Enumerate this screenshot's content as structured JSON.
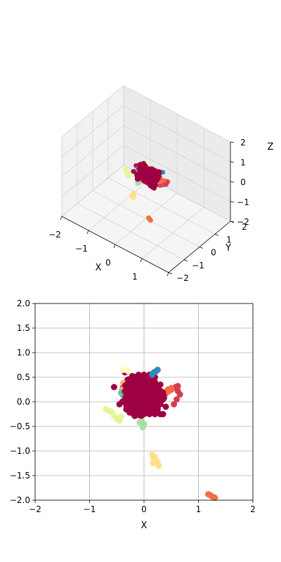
{
  "colors": {
    "main": "#9e0142",
    "red": "#d53e4f",
    "orange_red": "#f46d43",
    "orange": "#fdae61",
    "yellow": "#fee08b",
    "light_yellow": "#ffffbf",
    "light_green": "#e6f598",
    "green": "#abdda4",
    "teal": "#66c2a5",
    "blue": "#3288bd"
  },
  "chart_data": [
    {
      "type": "scatter3d",
      "xlabel": "X",
      "ylabel": "Y",
      "zlabel": "Z",
      "xlim": [
        -2,
        2
      ],
      "ylim": [
        -2,
        2
      ],
      "zlim": [
        -2,
        2
      ],
      "xticks": [
        "−2",
        "−1",
        "0",
        "1",
        "2"
      ],
      "yticks": [
        "−2",
        "−1",
        "0",
        "1",
        "2"
      ],
      "zticks": [
        "−2",
        "−1",
        "0",
        "1",
        "2"
      ],
      "grid": true
    },
    {
      "type": "scatter",
      "xlabel": "X",
      "ylabel": "",
      "xlim": [
        -2,
        2
      ],
      "ylim": [
        -2,
        2
      ],
      "xticks": [
        "−2",
        "−1",
        "0",
        "1",
        "2"
      ],
      "yticks": [
        "−2.0",
        "−1.5",
        "−1.0",
        "−0.5",
        "0.0",
        "0.5",
        "1.0",
        "1.5",
        "2.0"
      ],
      "grid": true,
      "series": [
        {
          "color": "main",
          "x": [
            -0.3,
            -0.2,
            -0.1,
            0.0,
            0.1,
            0.2,
            0.3,
            -0.25,
            -0.15,
            -0.05,
            0.05,
            0.15,
            0.25,
            -0.3,
            -0.2,
            -0.1,
            0.0,
            0.1,
            0.2,
            0.3,
            -0.25,
            -0.15,
            -0.05,
            0.05,
            0.15,
            0.25,
            -0.2,
            -0.1,
            0.0,
            0.1,
            0.2,
            0.3,
            -0.15,
            -0.05,
            0.05,
            0.15,
            0.25,
            -0.1,
            0.0,
            0.1,
            0.2,
            0.3,
            -0.35,
            -0.4,
            -0.45,
            -0.55,
            -0.35,
            0.35,
            0.4,
            0.35,
            -0.1,
            0.0,
            0.1,
            0.2,
            -0.3,
            -0.38
          ],
          "y": [
            0.45,
            0.5,
            0.5,
            0.45,
            0.45,
            0.4,
            0.35,
            0.35,
            0.35,
            0.35,
            0.35,
            0.3,
            0.3,
            0.2,
            0.2,
            0.2,
            0.2,
            0.2,
            0.15,
            0.15,
            0.05,
            0.05,
            0.05,
            0.05,
            0.05,
            0.05,
            -0.05,
            -0.05,
            -0.05,
            -0.05,
            -0.05,
            -0.05,
            -0.15,
            -0.15,
            -0.15,
            -0.15,
            -0.15,
            -0.25,
            -0.25,
            -0.25,
            -0.25,
            -0.25,
            0.1,
            0.0,
            -0.05,
            0.3,
            0.6,
            0.05,
            -0.1,
            -0.25,
            0.55,
            0.55,
            0.55,
            0.5,
            -0.1,
            0.3
          ]
        },
        {
          "color": "red",
          "x": [
            0.42,
            0.5,
            0.58,
            0.62,
            0.66,
            0.6,
            0.55,
            0.62
          ],
          "y": [
            0.2,
            0.25,
            0.3,
            0.22,
            0.15,
            0.05,
            -0.05,
            0.32
          ]
        },
        {
          "color": "orange_red",
          "x": [
            0.38,
            0.44,
            0.5,
            0.46,
            0.4,
            1.18,
            1.22,
            1.26,
            1.3
          ],
          "y": [
            0.2,
            0.25,
            0.28,
            0.22,
            0.17,
            -1.88,
            -1.9,
            -1.93,
            -1.95
          ]
        },
        {
          "color": "orange",
          "x": [
            -0.38,
            -0.35,
            -0.4
          ],
          "y": [
            0.38,
            0.32,
            0.25
          ]
        },
        {
          "color": "yellow",
          "x": [
            0.15,
            0.18,
            0.22,
            0.17,
            0.25,
            0.27,
            0.2
          ],
          "y": [
            -1.08,
            -1.15,
            -1.2,
            -1.25,
            -1.22,
            -1.3,
            -1.12
          ]
        },
        {
          "color": "light_yellow",
          "x": [
            -0.38,
            -0.32,
            -0.3
          ],
          "y": [
            0.65,
            0.65,
            0.63
          ]
        },
        {
          "color": "light_green",
          "x": [
            -0.7,
            -0.65,
            -0.6,
            -0.55,
            -0.5,
            -0.45,
            -0.42
          ],
          "y": [
            -0.15,
            -0.18,
            -0.2,
            -0.28,
            -0.35,
            -0.38,
            -0.3
          ]
        },
        {
          "color": "green",
          "x": [
            -0.05,
            0.0,
            -0.02,
            -0.08
          ],
          "y": [
            -0.38,
            -0.45,
            -0.52,
            -0.42
          ]
        },
        {
          "color": "teal",
          "x": [
            -0.42,
            -0.38,
            -0.35,
            -0.32
          ],
          "y": [
            0.18,
            0.12,
            0.2,
            0.15
          ]
        },
        {
          "color": "blue",
          "x": [
            0.18,
            0.22,
            0.25,
            0.15
          ],
          "y": [
            0.6,
            0.62,
            0.65,
            0.55
          ]
        }
      ]
    }
  ]
}
